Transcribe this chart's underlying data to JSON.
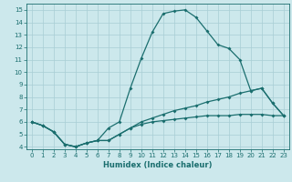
{
  "xlabel": "Humidex (Indice chaleur)",
  "xlim": [
    -0.5,
    23.5
  ],
  "ylim": [
    3.8,
    15.5
  ],
  "xticks": [
    0,
    1,
    2,
    3,
    4,
    5,
    6,
    7,
    8,
    9,
    10,
    11,
    12,
    13,
    14,
    15,
    16,
    17,
    18,
    19,
    20,
    21,
    22,
    23
  ],
  "yticks": [
    4,
    5,
    6,
    7,
    8,
    9,
    10,
    11,
    12,
    13,
    14,
    15
  ],
  "bg_color": "#cce8ec",
  "grid_color": "#a8cdd4",
  "line_color": "#1a6e6e",
  "line1_x": [
    0,
    1,
    2,
    3,
    4,
    5,
    6,
    7,
    8,
    9,
    10,
    11,
    12,
    13,
    14,
    15,
    16,
    17,
    18,
    19,
    20,
    21,
    22,
    23
  ],
  "line1_y": [
    6.0,
    5.7,
    5.2,
    4.2,
    4.0,
    4.3,
    4.5,
    5.5,
    6.0,
    8.7,
    11.1,
    13.2,
    14.7,
    14.9,
    15.0,
    14.4,
    13.3,
    12.2,
    11.9,
    11.0,
    8.5,
    8.7,
    7.5,
    6.5
  ],
  "line2_x": [
    0,
    1,
    2,
    3,
    4,
    5,
    6,
    7,
    8,
    9,
    10,
    11,
    12,
    13,
    14,
    15,
    16,
    17,
    18,
    19,
    20,
    21,
    22,
    23
  ],
  "line2_y": [
    6.0,
    5.7,
    5.2,
    4.2,
    4.0,
    4.3,
    4.5,
    4.5,
    5.0,
    5.5,
    6.0,
    6.3,
    6.6,
    6.9,
    7.1,
    7.3,
    7.6,
    7.8,
    8.0,
    8.3,
    8.5,
    8.7,
    7.5,
    6.5
  ],
  "line3_x": [
    0,
    1,
    2,
    3,
    4,
    5,
    6,
    7,
    8,
    9,
    10,
    11,
    12,
    13,
    14,
    15,
    16,
    17,
    18,
    19,
    20,
    21,
    22,
    23
  ],
  "line3_y": [
    6.0,
    5.7,
    5.2,
    4.2,
    4.0,
    4.3,
    4.5,
    4.5,
    5.0,
    5.5,
    5.8,
    6.0,
    6.1,
    6.2,
    6.3,
    6.4,
    6.5,
    6.5,
    6.5,
    6.6,
    6.6,
    6.6,
    6.5,
    6.5
  ]
}
